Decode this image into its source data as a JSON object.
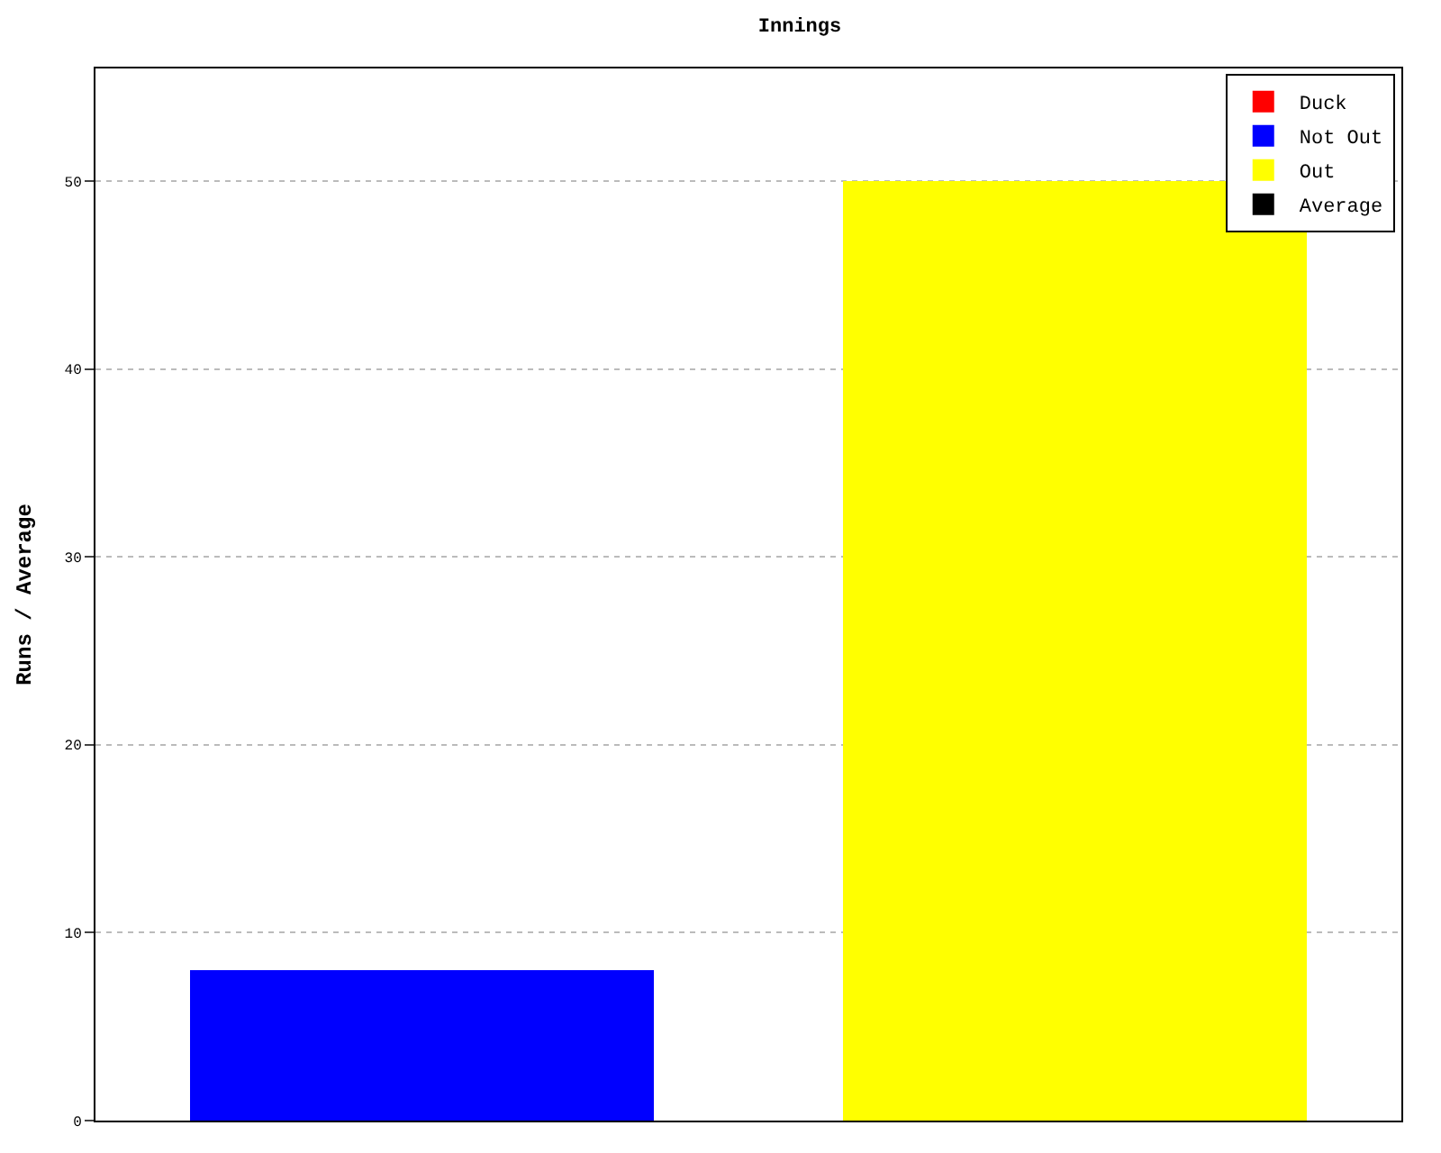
{
  "chart_data": {
    "type": "bar",
    "title": "Innings",
    "ylabel": "Runs / Average",
    "categories": [
      null,
      null
    ],
    "series": [
      {
        "name": "Average",
        "color": "#000000",
        "values": [
          null,
          null
        ]
      },
      {
        "name": "Out",
        "color": "#ffff00",
        "values": [
          null,
          50
        ]
      },
      {
        "name": "Not Out",
        "color": "#0000ff",
        "values": [
          8,
          null
        ]
      },
      {
        "name": "Duck",
        "color": "#ff0000",
        "values": [
          null,
          null
        ]
      }
    ],
    "stacked": true,
    "ylim": [
      0,
      56
    ],
    "yticks": [
      0,
      10,
      20,
      30,
      40,
      50
    ],
    "grid": "y",
    "legend": "top right"
  }
}
